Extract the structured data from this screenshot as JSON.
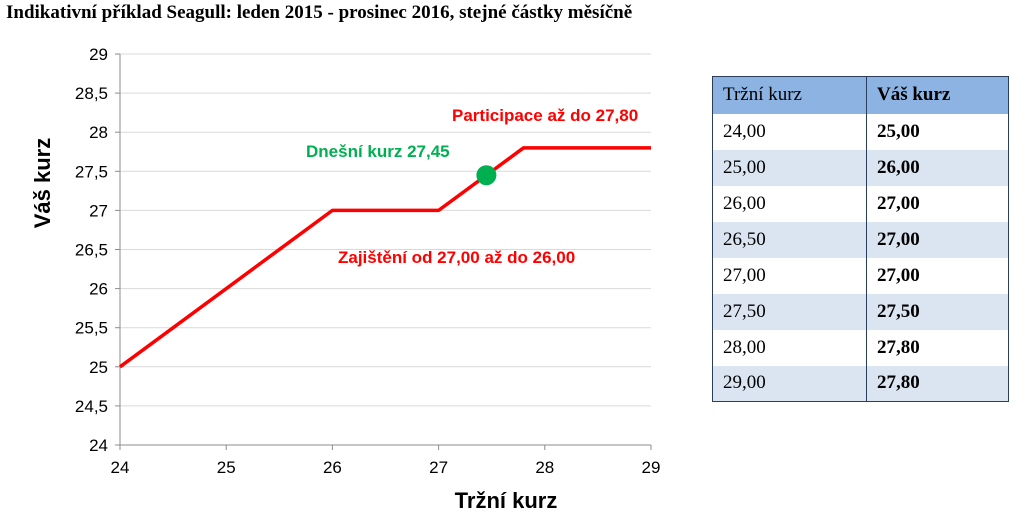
{
  "title": "Indikativní příklad Seagull: leden 2015 - prosinec 2016, stejné částky měsíčně",
  "colors": {
    "line": "#ff0000",
    "marker": "#00b050",
    "annot_red": "#ff0000",
    "annot_green": "#00b050"
  },
  "chart_data": {
    "type": "line",
    "xlabel": "Tržní kurz",
    "ylabel": "Váš kurz",
    "xlim": [
      24,
      29
    ],
    "ylim": [
      24,
      29
    ],
    "x_ticks": [
      "24",
      "25",
      "26",
      "27",
      "28",
      "29"
    ],
    "y_ticks": [
      "24",
      "24,5",
      "25",
      "25,5",
      "26",
      "26,5",
      "27",
      "27,5",
      "28",
      "28,5",
      "29"
    ],
    "grid": "horizontal",
    "series": [
      {
        "x": [
          24,
          26,
          27,
          27.8,
          29
        ],
        "y": [
          25,
          27,
          27,
          27.8,
          27.8
        ]
      }
    ],
    "marker": {
      "x": 27.45,
      "y": 27.45
    },
    "annotations": [
      {
        "text": "Participace až do 27,80",
        "color": "red"
      },
      {
        "text": "Dnešní kurz 27,45",
        "color": "green"
      },
      {
        "text": "Zajištění od 27,00 až do 26,00",
        "color": "red"
      }
    ]
  },
  "table": {
    "headers": [
      "Tržní kurz",
      "Váš kurz"
    ],
    "rows": [
      [
        "24,00",
        "25,00"
      ],
      [
        "25,00",
        "26,00"
      ],
      [
        "26,00",
        "27,00"
      ],
      [
        "26,50",
        "27,00"
      ],
      [
        "27,00",
        "27,00"
      ],
      [
        "27,50",
        "27,50"
      ],
      [
        "28,00",
        "27,80"
      ],
      [
        "29,00",
        "27,80"
      ]
    ]
  }
}
